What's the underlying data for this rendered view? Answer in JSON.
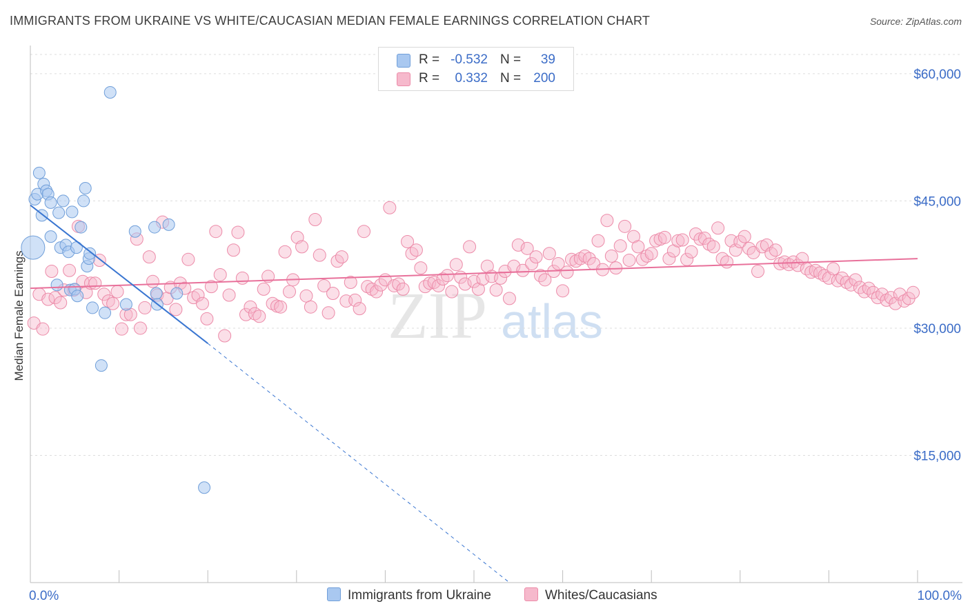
{
  "title": "IMMIGRANTS FROM UKRAINE VS WHITE/CAUCASIAN MEDIAN FEMALE EARNINGS CORRELATION CHART",
  "source": "Source: ZipAtlas.com",
  "watermark": {
    "zip": "ZIP",
    "atlas": "atlas"
  },
  "colors": {
    "blue_fill": "#a9c8f0",
    "blue_stroke": "#6f9ed9",
    "blue_line": "#3a76d1",
    "pink_fill": "#f6b9cc",
    "pink_stroke": "#ec8aa8",
    "pink_line": "#e8709a",
    "axis_text": "#3b6cc7",
    "grid": "#dcdcdc"
  },
  "legend": {
    "rows": [
      {
        "r_label": "R =",
        "r_value": "-0.532",
        "n_label": "N =",
        "n_value": "39",
        "series": "blue"
      },
      {
        "r_label": "R =",
        "r_value": "0.332",
        "n_label": "N =",
        "n_value": "200",
        "series": "pink"
      }
    ]
  },
  "bottom_legend": [
    {
      "label": "Immigrants from Ukraine",
      "series": "blue"
    },
    {
      "label": "Whites/Caucasians",
      "series": "pink"
    }
  ],
  "chart_data": {
    "type": "scatter",
    "xlabel": "",
    "ylabel": "Median Female Earnings",
    "xlim": [
      0,
      100
    ],
    "ylim": [
      0,
      63000
    ],
    "x_tick_labels": [
      "0.0%",
      "100.0%"
    ],
    "y_ticks": [
      15000,
      30000,
      45000,
      60000
    ],
    "y_tick_labels": [
      "$15,000",
      "$30,000",
      "$45,000",
      "$60,000"
    ],
    "grid": true,
    "legend_position": "top-center",
    "series": [
      {
        "name": "Immigrants from Ukraine",
        "color": "blue",
        "R": -0.532,
        "N": 39,
        "trend": {
          "x": [
            0,
            20
          ],
          "y": [
            44500,
            28200
          ],
          "dashed_to": [
            54,
            0
          ]
        },
        "points": [
          [
            0.3,
            39500,
            3
          ],
          [
            0.5,
            45200,
            1
          ],
          [
            0.8,
            45800,
            1
          ],
          [
            1,
            48300,
            1
          ],
          [
            1.3,
            43300,
            1
          ],
          [
            1.5,
            47000,
            1
          ],
          [
            1.8,
            46200,
            1
          ],
          [
            2,
            45800,
            1
          ],
          [
            2.3,
            44800,
            1
          ],
          [
            2.3,
            40800,
            1
          ],
          [
            3,
            35100,
            1
          ],
          [
            3.2,
            43600,
            1
          ],
          [
            3.4,
            39500,
            1
          ],
          [
            3.7,
            45000,
            1
          ],
          [
            4,
            39800,
            1
          ],
          [
            4.3,
            39000,
            1
          ],
          [
            4.5,
            34500,
            1
          ],
          [
            4.7,
            43700,
            1
          ],
          [
            5,
            34600,
            1
          ],
          [
            5.2,
            39500,
            1
          ],
          [
            5.3,
            33800,
            1
          ],
          [
            5.7,
            41900,
            1
          ],
          [
            6,
            45000,
            1
          ],
          [
            6.2,
            46500,
            1
          ],
          [
            6.4,
            37300,
            1
          ],
          [
            6.6,
            38200,
            1
          ],
          [
            6.7,
            38800,
            1
          ],
          [
            7,
            32400,
            1
          ],
          [
            8,
            25600,
            1
          ],
          [
            8.4,
            31800,
            1
          ],
          [
            9,
            57800,
            1
          ],
          [
            10.8,
            32800,
            1
          ],
          [
            11.8,
            41400,
            1
          ],
          [
            14,
            41900,
            1
          ],
          [
            14.2,
            34100,
            1
          ],
          [
            14.3,
            32800,
            1
          ],
          [
            15.6,
            42200,
            1
          ],
          [
            16.5,
            34100,
            1
          ],
          [
            19.6,
            11200,
            1
          ]
        ]
      },
      {
        "name": "Whites/Caucasians",
        "color": "pink",
        "R": 0.332,
        "N": 200,
        "trend": {
          "x": [
            0,
            100
          ],
          "y": [
            34700,
            38200
          ]
        },
        "points": [
          [
            0.4,
            30600
          ],
          [
            1,
            34000
          ],
          [
            1.4,
            29900
          ],
          [
            2,
            33400
          ],
          [
            2.4,
            36700
          ],
          [
            2.8,
            33600
          ],
          [
            3.4,
            33000
          ],
          [
            3.8,
            34500
          ],
          [
            4.4,
            36800
          ],
          [
            4.9,
            34500
          ],
          [
            5.4,
            42000
          ],
          [
            5.9,
            35500
          ],
          [
            6.3,
            34200
          ],
          [
            6.8,
            35300
          ],
          [
            7.3,
            35300
          ],
          [
            7.8,
            38000
          ],
          [
            8.3,
            34000
          ],
          [
            8.8,
            33200
          ],
          [
            9.3,
            32900
          ],
          [
            9.8,
            34300
          ],
          [
            10.3,
            29900
          ],
          [
            10.8,
            31600
          ],
          [
            11.3,
            31600
          ],
          [
            12,
            40500
          ],
          [
            12.4,
            30000
          ],
          [
            12.9,
            32400
          ],
          [
            13.4,
            38400
          ],
          [
            13.8,
            35500
          ],
          [
            14.3,
            33900
          ],
          [
            14.9,
            42500
          ],
          [
            15.4,
            33500
          ],
          [
            15.8,
            34800
          ],
          [
            16.4,
            32200
          ],
          [
            16.9,
            35300
          ],
          [
            17.4,
            34700
          ],
          [
            17.8,
            38100
          ],
          [
            18.4,
            33600
          ],
          [
            18.9,
            33900
          ],
          [
            19.4,
            32900
          ],
          [
            19.9,
            31100
          ],
          [
            20.4,
            34900
          ],
          [
            20.9,
            41400
          ],
          [
            21.4,
            36300
          ],
          [
            21.9,
            29100
          ],
          [
            22.4,
            33900
          ],
          [
            22.9,
            39200
          ],
          [
            23.4,
            41300
          ],
          [
            23.9,
            35900
          ],
          [
            24.3,
            31600
          ],
          [
            24.8,
            32500
          ],
          [
            25.3,
            31700
          ],
          [
            25.8,
            31400
          ],
          [
            26.3,
            34600
          ],
          [
            26.8,
            36100
          ],
          [
            27.3,
            32900
          ],
          [
            27.8,
            32600
          ],
          [
            28.2,
            32500
          ],
          [
            28.7,
            39000
          ],
          [
            29.2,
            34300
          ],
          [
            29.6,
            35700
          ],
          [
            30.1,
            40700
          ],
          [
            30.6,
            39600
          ],
          [
            31.1,
            33800
          ],
          [
            31.6,
            32500
          ],
          [
            32.1,
            42800
          ],
          [
            32.6,
            38600
          ],
          [
            33.1,
            35000
          ],
          [
            33.6,
            31800
          ],
          [
            34.1,
            34100
          ],
          [
            34.6,
            37900
          ],
          [
            35.1,
            38400
          ],
          [
            35.6,
            33200
          ],
          [
            36.1,
            35400
          ],
          [
            36.6,
            33300
          ],
          [
            37.1,
            32300
          ],
          [
            37.6,
            41400
          ],
          [
            38,
            34900
          ],
          [
            38.5,
            34600
          ],
          [
            39,
            34300
          ],
          [
            39.5,
            35100
          ],
          [
            40,
            35700
          ],
          [
            40.5,
            44200
          ],
          [
            41,
            35000
          ],
          [
            41.5,
            35200
          ],
          [
            42,
            34600
          ],
          [
            42.5,
            40200
          ],
          [
            43,
            38800
          ],
          [
            43.5,
            39200
          ],
          [
            44,
            37100
          ],
          [
            44.5,
            34900
          ],
          [
            45,
            35300
          ],
          [
            45.5,
            35400
          ],
          [
            46,
            35000
          ],
          [
            46.5,
            35800
          ],
          [
            47,
            36200
          ],
          [
            47.5,
            34300
          ],
          [
            48,
            37500
          ],
          [
            48.5,
            36000
          ],
          [
            49,
            35200
          ],
          [
            49.5,
            39600
          ],
          [
            50,
            35500
          ],
          [
            50.5,
            34600
          ],
          [
            51,
            35800
          ],
          [
            51.5,
            37300
          ],
          [
            52,
            36100
          ],
          [
            52.5,
            34500
          ],
          [
            53,
            35900
          ],
          [
            53.5,
            36700
          ],
          [
            54,
            33500
          ],
          [
            54.5,
            37300
          ],
          [
            55,
            39800
          ],
          [
            55.5,
            36800
          ],
          [
            56,
            39400
          ],
          [
            56.5,
            37600
          ],
          [
            57,
            38400
          ],
          [
            57.5,
            36200
          ],
          [
            58,
            35700
          ],
          [
            58.5,
            38800
          ],
          [
            59,
            36700
          ],
          [
            59.5,
            37600
          ],
          [
            60,
            34400
          ],
          [
            60.5,
            36600
          ],
          [
            61,
            38100
          ],
          [
            61.5,
            37900
          ],
          [
            62,
            38200
          ],
          [
            62.5,
            38500
          ],
          [
            63,
            38200
          ],
          [
            63.5,
            37600
          ],
          [
            64,
            40300
          ],
          [
            64.5,
            36900
          ],
          [
            65,
            42700
          ],
          [
            65.5,
            38500
          ],
          [
            66,
            37100
          ],
          [
            66.5,
            39700
          ],
          [
            67,
            42000
          ],
          [
            67.5,
            38000
          ],
          [
            68,
            40800
          ],
          [
            68.5,
            39600
          ],
          [
            69,
            38100
          ],
          [
            69.5,
            38500
          ],
          [
            70,
            38800
          ],
          [
            70.5,
            40300
          ],
          [
            71,
            40500
          ],
          [
            71.5,
            40700
          ],
          [
            72,
            38200
          ],
          [
            72.5,
            39100
          ],
          [
            73,
            40300
          ],
          [
            73.5,
            40400
          ],
          [
            74,
            38100
          ],
          [
            74.5,
            39000
          ],
          [
            75,
            41100
          ],
          [
            75.5,
            40500
          ],
          [
            76,
            40600
          ],
          [
            76.5,
            39900
          ],
          [
            77,
            39600
          ],
          [
            77.5,
            41800
          ],
          [
            78,
            38200
          ],
          [
            78.5,
            37800
          ],
          [
            79,
            40300
          ],
          [
            79.5,
            39200
          ],
          [
            80,
            40200
          ],
          [
            80.5,
            40800
          ],
          [
            81,
            39400
          ],
          [
            81.5,
            38900
          ],
          [
            82,
            36700
          ],
          [
            82.5,
            39600
          ],
          [
            83,
            39800
          ],
          [
            83.5,
            38800
          ],
          [
            84,
            39200
          ],
          [
            84.5,
            37600
          ],
          [
            85,
            37800
          ],
          [
            85.5,
            37500
          ],
          [
            86,
            37800
          ],
          [
            86.5,
            37400
          ],
          [
            87,
            38200
          ],
          [
            87.5,
            37000
          ],
          [
            88,
            36600
          ],
          [
            88.5,
            36800
          ],
          [
            89,
            36500
          ],
          [
            89.5,
            36200
          ],
          [
            90,
            35900
          ],
          [
            90.5,
            37000
          ],
          [
            91,
            35600
          ],
          [
            91.5,
            35900
          ],
          [
            92,
            35400
          ],
          [
            92.5,
            35100
          ],
          [
            93,
            35700
          ],
          [
            93.5,
            34800
          ],
          [
            94,
            34300
          ],
          [
            94.5,
            34700
          ],
          [
            95,
            34200
          ],
          [
            95.5,
            33600
          ],
          [
            96,
            34000
          ],
          [
            96.5,
            33300
          ],
          [
            97,
            33600
          ],
          [
            97.5,
            32900
          ],
          [
            98,
            34000
          ],
          [
            98.5,
            33200
          ],
          [
            99,
            33500
          ],
          [
            99.5,
            34200
          ]
        ]
      }
    ]
  }
}
